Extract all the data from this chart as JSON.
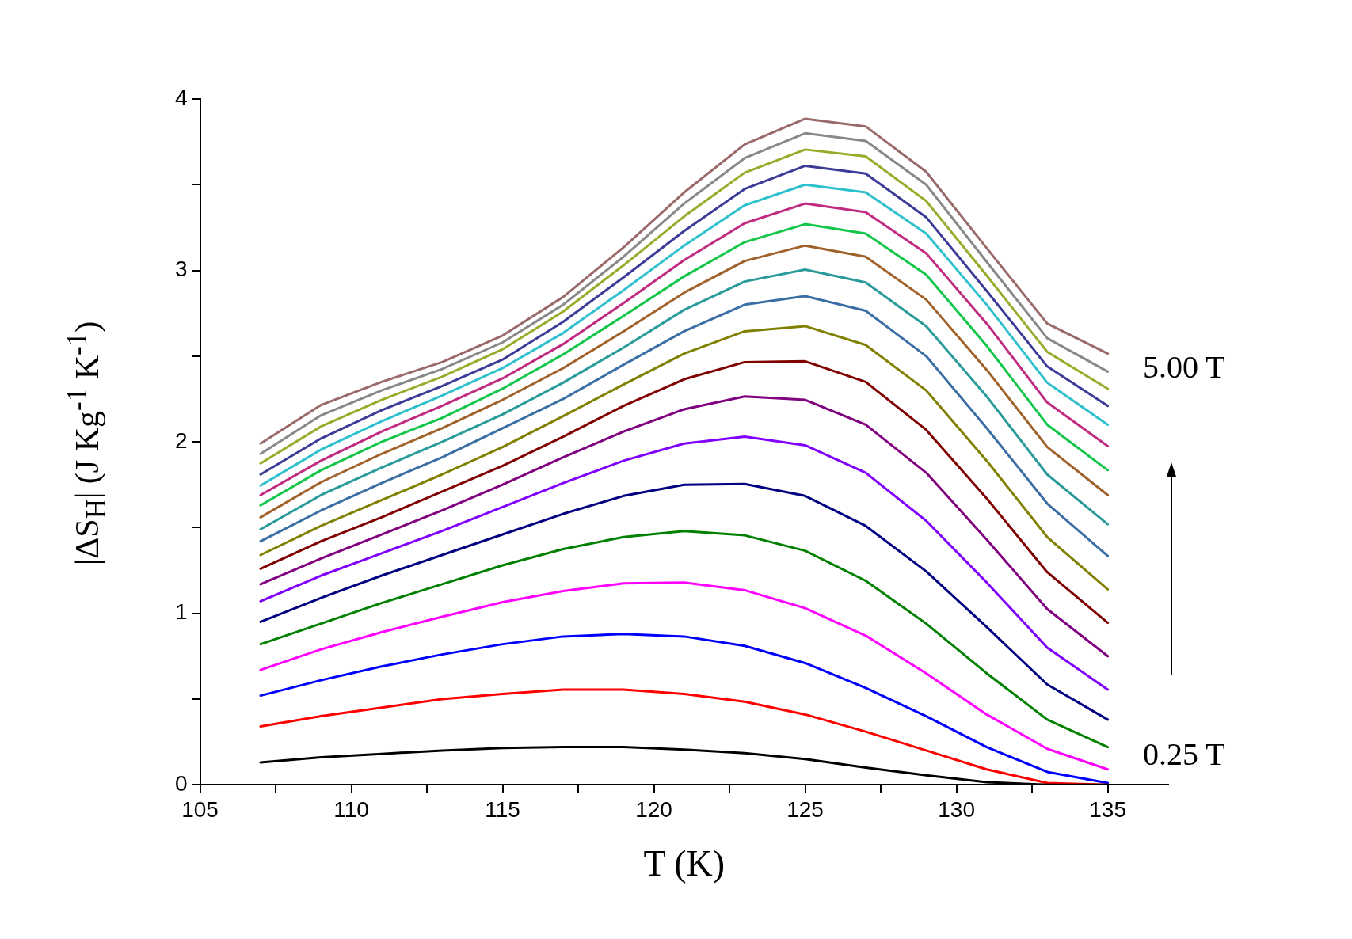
{
  "chart_data": {
    "type": "line",
    "xlabel": "T (K)",
    "ylabel": "|ΔS$_{H}$| (J Kg$^{-1}$ K$^{-1}$)",
    "x": [
      107,
      109,
      111,
      113,
      115,
      117,
      119,
      121,
      123,
      125,
      127,
      129,
      131,
      133,
      135
    ],
    "xlim": [
      105,
      137
    ],
    "xticks": [
      105,
      {
        "value": 107.5,
        "label": null
      },
      110,
      {
        "value": 112.5,
        "label": null
      },
      115,
      {
        "value": 117.5,
        "label": null
      },
      120,
      {
        "value": 122.5,
        "label": null
      },
      125,
      {
        "value": 127.5,
        "label": null
      },
      130,
      {
        "value": 132.5,
        "label": null
      },
      135
    ],
    "ylim": [
      0,
      4
    ],
    "yticks": [
      0,
      {
        "value": 0.5,
        "label": null
      },
      1,
      {
        "value": 1.5,
        "label": null
      },
      2,
      {
        "value": 2.5,
        "label": null
      },
      3,
      {
        "value": 3.5,
        "label": null
      },
      4
    ],
    "grid": false,
    "legend": false,
    "marker": "none",
    "line_style": "solid",
    "series": [
      {
        "name": "0.25 T",
        "color": "#000000",
        "values": [
          0.13,
          0.16,
          0.18,
          0.2,
          0.215,
          0.22,
          0.22,
          0.205,
          0.185,
          0.15,
          0.1,
          0.055,
          0.015,
          0,
          0
        ]
      },
      {
        "color": "#ff0000",
        "values": [
          0.34,
          0.4,
          0.45,
          0.5,
          0.53,
          0.555,
          0.555,
          0.53,
          0.485,
          0.41,
          0.31,
          0.2,
          0.09,
          0.01,
          0
        ]
      },
      {
        "color": "#0000ff",
        "values": [
          0.52,
          0.61,
          0.69,
          0.76,
          0.82,
          0.865,
          0.88,
          0.865,
          0.81,
          0.71,
          0.565,
          0.4,
          0.22,
          0.075,
          0.01
        ]
      },
      {
        "color": "#ff00ff",
        "values": [
          0.67,
          0.79,
          0.89,
          0.98,
          1.065,
          1.13,
          1.175,
          1.18,
          1.135,
          1.03,
          0.87,
          0.65,
          0.41,
          0.21,
          0.09
        ]
      },
      {
        "color": "#008000",
        "values": [
          0.82,
          0.94,
          1.06,
          1.17,
          1.28,
          1.375,
          1.445,
          1.48,
          1.455,
          1.365,
          1.19,
          0.94,
          0.65,
          0.38,
          0.22
        ]
      },
      {
        "color": "#000080",
        "values": [
          0.95,
          1.09,
          1.22,
          1.34,
          1.46,
          1.58,
          1.685,
          1.75,
          1.755,
          1.685,
          1.51,
          1.245,
          0.92,
          0.585,
          0.38
        ]
      },
      {
        "color": "#8000ff",
        "values": [
          1.07,
          1.22,
          1.35,
          1.48,
          1.62,
          1.76,
          1.89,
          1.99,
          2.03,
          1.98,
          1.82,
          1.54,
          1.18,
          0.8,
          0.555
        ]
      },
      {
        "color": "#800080",
        "values": [
          1.17,
          1.32,
          1.46,
          1.6,
          1.75,
          1.91,
          2.06,
          2.19,
          2.265,
          2.245,
          2.1,
          1.82,
          1.43,
          1.025,
          0.75
        ]
      },
      {
        "color": "#800000",
        "values": [
          1.26,
          1.42,
          1.56,
          1.71,
          1.86,
          2.03,
          2.21,
          2.365,
          2.465,
          2.47,
          2.35,
          2.07,
          1.67,
          1.24,
          0.945
        ]
      },
      {
        "color": "#808000",
        "values": [
          1.34,
          1.51,
          1.66,
          1.81,
          1.97,
          2.15,
          2.335,
          2.515,
          2.645,
          2.675,
          2.565,
          2.3,
          1.89,
          1.445,
          1.14
        ]
      },
      {
        "color": "#3b6ea5",
        "values": [
          1.42,
          1.6,
          1.76,
          1.91,
          2.08,
          2.25,
          2.45,
          2.645,
          2.8,
          2.85,
          2.765,
          2.5,
          2.08,
          1.64,
          1.335
        ]
      },
      {
        "color": "#2a9a9a",
        "values": [
          1.49,
          1.69,
          1.85,
          2.0,
          2.16,
          2.345,
          2.55,
          2.77,
          2.935,
          3.005,
          2.93,
          2.675,
          2.265,
          1.81,
          1.52
        ]
      },
      {
        "color": "#a0622a",
        "values": [
          1.56,
          1.765,
          1.93,
          2.08,
          2.245,
          2.43,
          2.645,
          2.87,
          3.055,
          3.145,
          3.08,
          2.83,
          2.42,
          1.97,
          1.69
        ]
      },
      {
        "color": "#13c64a",
        "values": [
          1.63,
          1.835,
          2.0,
          2.14,
          2.31,
          2.51,
          2.735,
          2.965,
          3.165,
          3.27,
          3.215,
          2.975,
          2.56,
          2.1,
          1.835
        ]
      },
      {
        "color": "#c02a80",
        "values": [
          1.69,
          1.89,
          2.06,
          2.21,
          2.37,
          2.57,
          2.81,
          3.06,
          3.275,
          3.39,
          3.34,
          3.1,
          2.69,
          2.23,
          1.975
        ]
      },
      {
        "color": "#2ec0cc",
        "values": [
          1.745,
          1.955,
          2.12,
          2.27,
          2.43,
          2.635,
          2.885,
          3.145,
          3.38,
          3.5,
          3.455,
          3.215,
          2.8,
          2.345,
          2.1
        ]
      },
      {
        "color": "#3c3c98",
        "values": [
          1.81,
          2.02,
          2.185,
          2.325,
          2.48,
          2.7,
          2.96,
          3.23,
          3.475,
          3.61,
          3.565,
          3.31,
          2.88,
          2.44,
          2.21
        ]
      },
      {
        "color": "#9aaa2a",
        "values": [
          1.875,
          2.09,
          2.245,
          2.38,
          2.54,
          2.76,
          3.03,
          3.315,
          3.57,
          3.705,
          3.665,
          3.405,
          2.97,
          2.525,
          2.31
        ]
      },
      {
        "color": "#888888",
        "values": [
          1.93,
          2.155,
          2.3,
          2.425,
          2.58,
          2.8,
          3.08,
          3.39,
          3.655,
          3.8,
          3.755,
          3.5,
          3.05,
          2.605,
          2.41
        ]
      },
      {
        "name": "5.00 T",
        "color": "#9a6a6a",
        "values": [
          1.99,
          2.215,
          2.35,
          2.465,
          2.62,
          2.845,
          3.135,
          3.455,
          3.735,
          3.885,
          3.84,
          3.575,
          3.13,
          2.69,
          2.515
        ]
      }
    ]
  }
}
